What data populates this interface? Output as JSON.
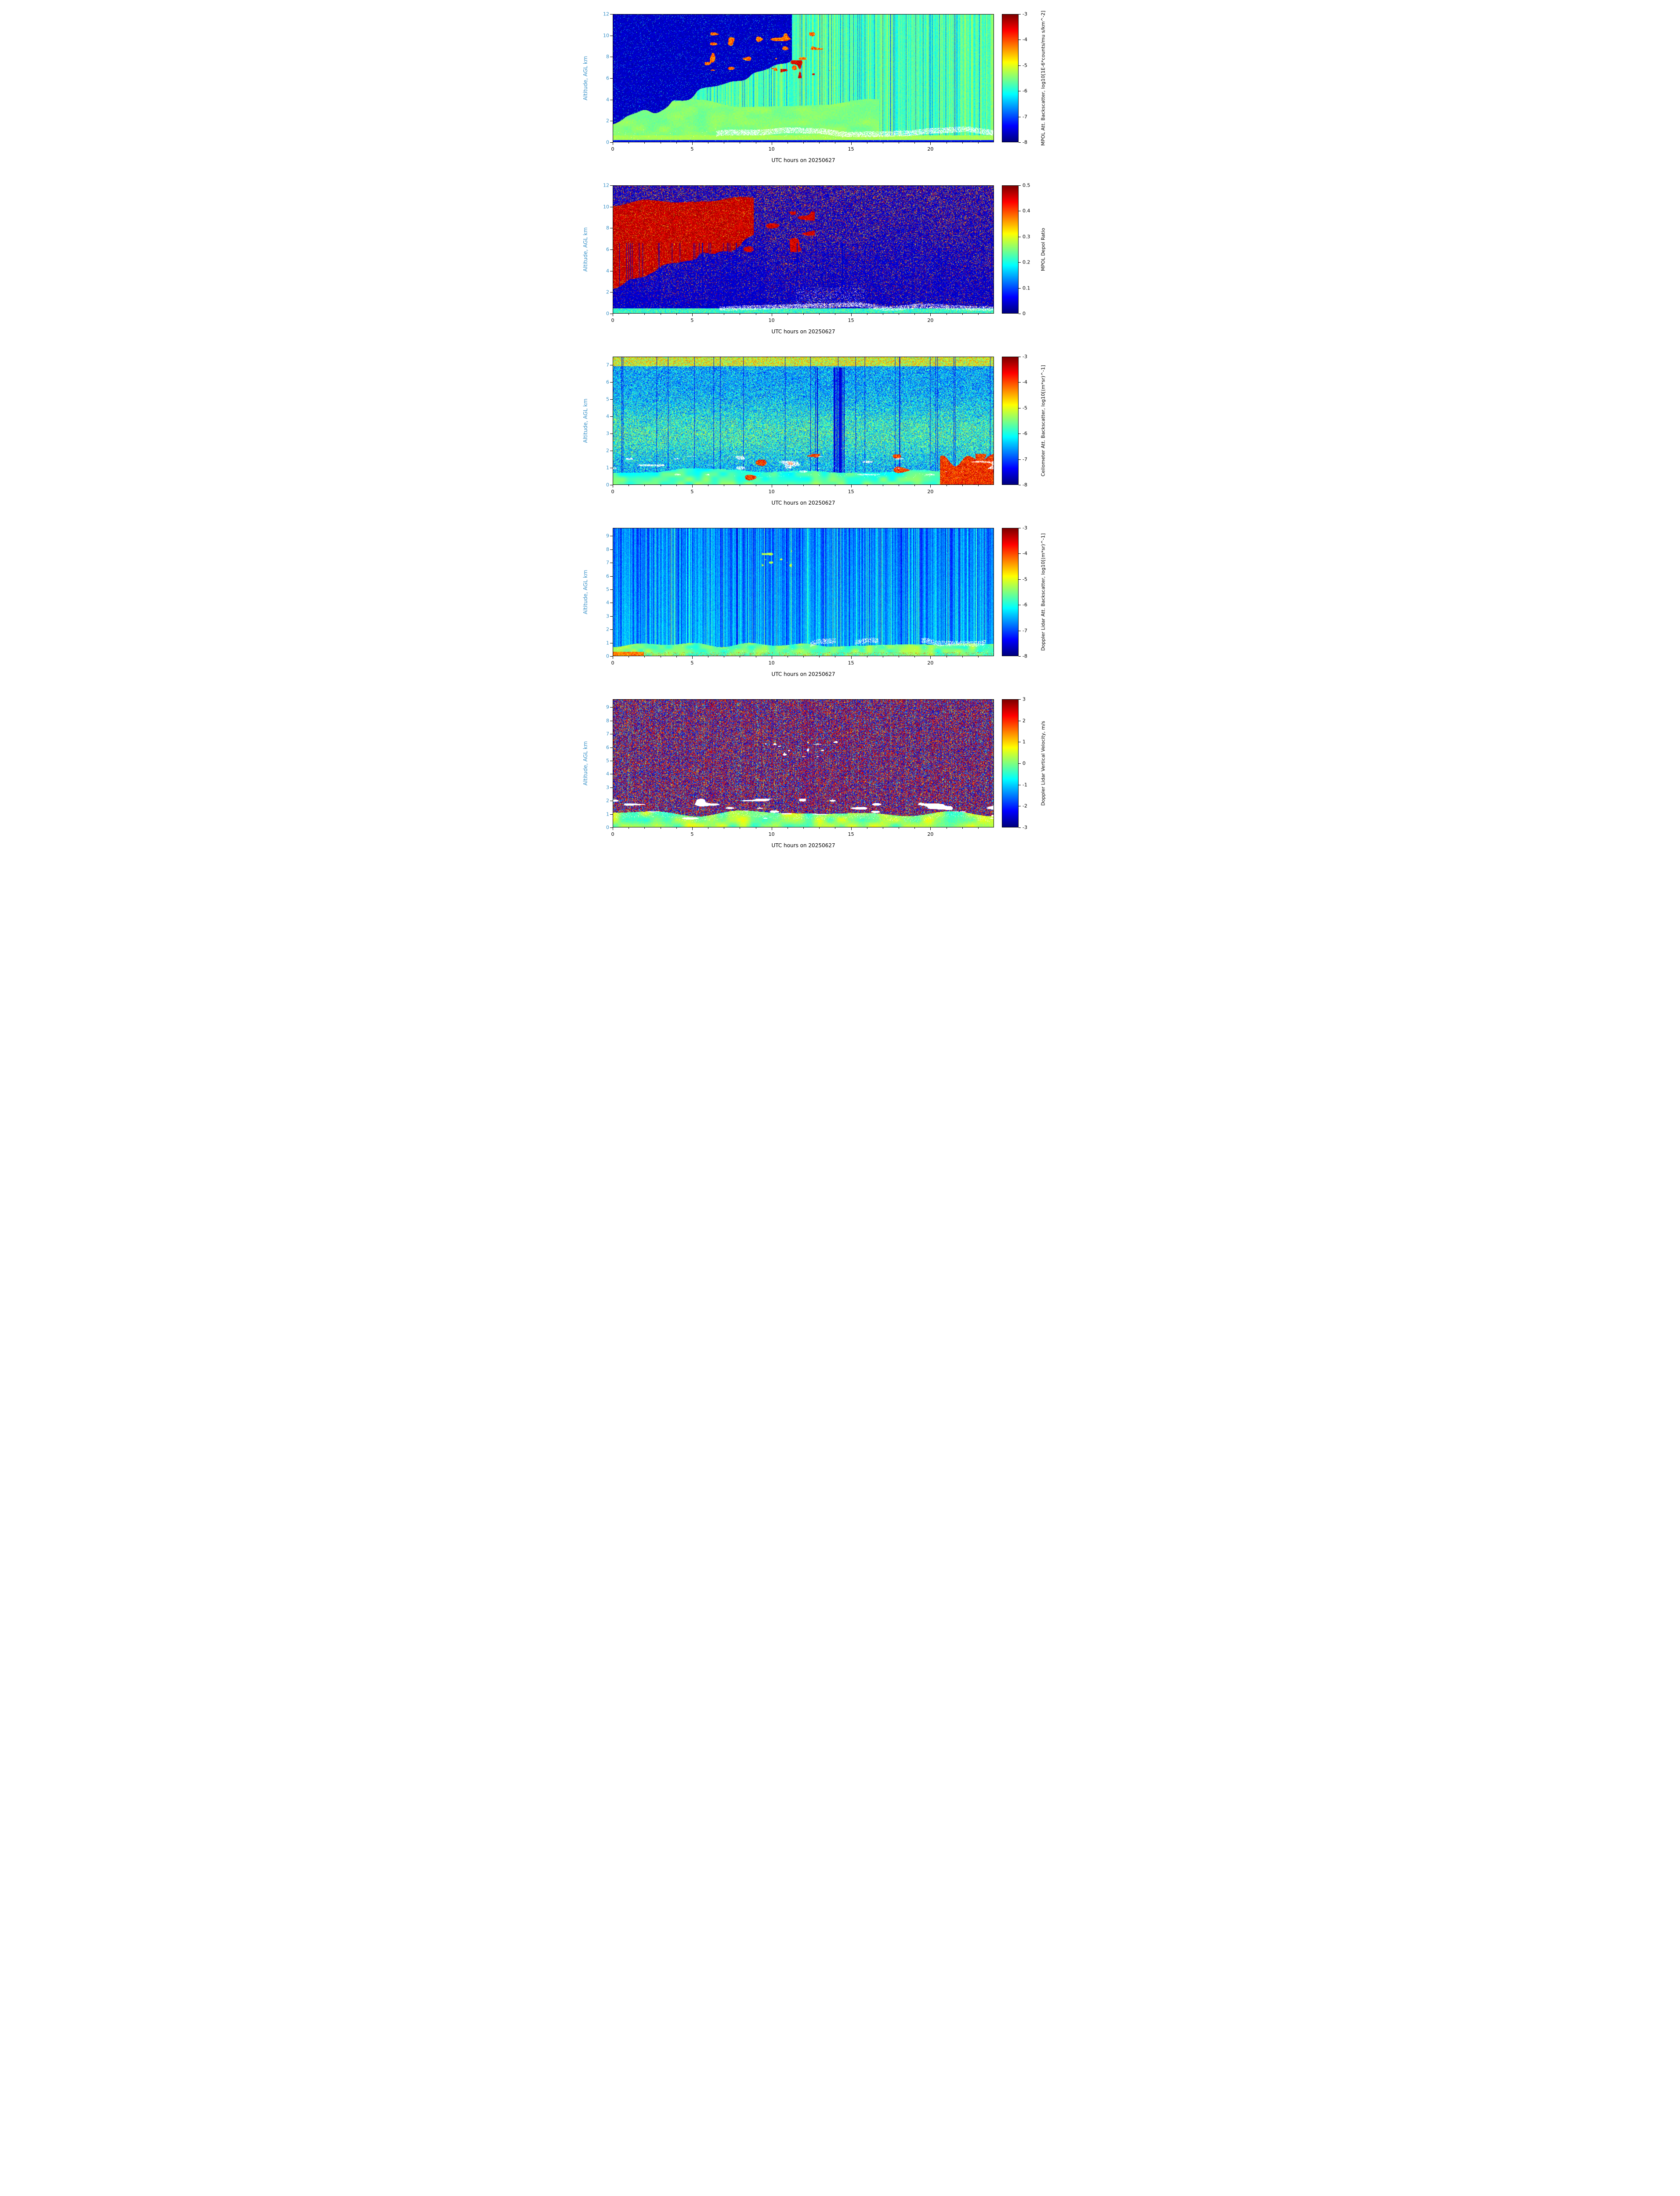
{
  "figure": {
    "date": "20250627",
    "xlabel": "UTC hours on 20250627",
    "ylabel": "Altitude, AGL km",
    "axis_color": "#3a92c8",
    "x_range": [
      0,
      24
    ],
    "x_major_ticks": [
      0,
      5,
      10,
      15,
      20
    ],
    "panels": [
      {
        "name": "mpol-att-backscatter",
        "y_range": [
          0,
          12
        ],
        "y_ticks": [
          0,
          2,
          4,
          6,
          8,
          10,
          12
        ],
        "colorbar": {
          "label": "MPOL Att. Backscatter, log10[1E-6*counts/mu s/km^-2]",
          "range": [
            -8,
            -3
          ],
          "ticks": [
            -3,
            -4,
            -5,
            -6,
            -7,
            -8
          ],
          "colormap": "jet"
        }
      },
      {
        "name": "mpol-depol-ratio",
        "y_range": [
          0,
          12
        ],
        "y_ticks": [
          0,
          2,
          4,
          6,
          8,
          10,
          12
        ],
        "colorbar": {
          "label": "MPOL Depol Ratio",
          "range": [
            0,
            0.5
          ],
          "ticks": [
            0,
            0.1,
            0.2,
            0.3,
            0.4,
            0.5
          ],
          "colormap": "jet"
        }
      },
      {
        "name": "ceilometer-att-backscatter",
        "y_range": [
          0,
          7.5
        ],
        "y_ticks": [
          0,
          1,
          2,
          3,
          4,
          5,
          6,
          7
        ],
        "colorbar": {
          "label": "Ceilometer Att. Backscatter, log10[(m*sr)^-1]",
          "range": [
            -8,
            -3
          ],
          "ticks": [
            -3,
            -4,
            -5,
            -6,
            -7,
            -8
          ],
          "colormap": "jet"
        }
      },
      {
        "name": "doppler-lidar-att-backscatter",
        "y_range": [
          0,
          9.6
        ],
        "y_ticks": [
          0,
          1,
          2,
          3,
          4,
          5,
          6,
          7,
          8,
          9
        ],
        "colorbar": {
          "label": "Doppler Lidar Att. Backscatter, log10[(m*sr)^-1]",
          "range": [
            -8,
            -3
          ],
          "ticks": [
            -3,
            -4,
            -5,
            -6,
            -7,
            -8
          ],
          "colormap": "jet"
        }
      },
      {
        "name": "doppler-lidar-vertical-velocity",
        "y_range": [
          0,
          9.6
        ],
        "y_ticks": [
          0,
          1,
          2,
          3,
          4,
          5,
          6,
          7,
          8,
          9
        ],
        "colorbar": {
          "label": "Doppler Lidar Vertical Velocity, m/s",
          "range": [
            -3,
            3
          ],
          "ticks": [
            3,
            2,
            1,
            0,
            -1,
            -2,
            -3
          ],
          "colormap": "jet"
        }
      }
    ]
  },
  "chart_data": [
    {
      "type": "heatmap",
      "title": "MPOL attenuated backscatter time-height curtain",
      "xlabel": "UTC hours on 20250627",
      "ylabel": "Altitude, AGL km",
      "x_range": [
        0,
        24
      ],
      "x_ticks": [
        0,
        5,
        10,
        15,
        20
      ],
      "y_range_km": [
        0,
        12
      ],
      "y_ticks": [
        0,
        2,
        4,
        6,
        8,
        10,
        12
      ],
      "value_label": "MPOL Att. Backscatter, log10[1E-6*counts/mu s/km^-2]",
      "value_range": [
        -8,
        -3
      ],
      "colormap": "jet",
      "legend_position": "right-colorbar",
      "grid": false,
      "features": [
        "Dark-blue low-signal noise region above ~2 km at hour 0 rising to ~10 km by hour 6",
        "Green boundary-layer aerosol (about -6 to -5.5) below ~3-4 km during hours 0-8",
        "White cloud returns near 0.5-1 km AGL intermittently from hour ~7 through 24",
        "Orange-red elevated cloud layers near 7-10 km between hours ~6 and 13",
        "Strong vertical striping: alternating bright cyan columns and dark attenuated/gap columns after hour 9"
      ]
    },
    {
      "type": "heatmap",
      "title": "MPOL depolarization ratio time-height curtain",
      "xlabel": "UTC hours on 20250627",
      "ylabel": "Altitude, AGL km",
      "x_range": [
        0,
        24
      ],
      "x_ticks": [
        0,
        5,
        10,
        15,
        20
      ],
      "y_range_km": [
        0,
        12
      ],
      "y_ticks": [
        0,
        2,
        4,
        6,
        8,
        10,
        12
      ],
      "value_label": "MPOL Depol Ratio",
      "value_range": [
        0,
        0.5
      ],
      "colormap": "jet",
      "legend_position": "right-colorbar",
      "grid": false,
      "features": [
        "Large dark-red high-depolarization (>0.4) region from ~3 km up to ~10 km during hours 0-6",
        "Red streaky fall-streak features near 6-9 km during hours 8-13",
        "Speckled red noise over dark-blue background, density increasing with altitude and after hour 10",
        "White cloud returns near 0.5-1.5 km after hour ~7",
        "Narrow dark-blue attenuation gap columns in hours 9-16"
      ]
    },
    {
      "type": "heatmap",
      "title": "Ceilometer attenuated backscatter time-height curtain",
      "xlabel": "UTC hours on 20250627",
      "ylabel": "Altitude, AGL km",
      "x_range": [
        0,
        24
      ],
      "x_ticks": [
        0,
        5,
        10,
        15,
        20
      ],
      "y_range_km": [
        0,
        7.5
      ],
      "y_ticks": [
        0,
        1,
        2,
        3,
        4,
        5,
        6,
        7
      ],
      "value_label": "Ceilometer Att. Backscatter, log10[(m*sr)^-1]",
      "value_range": [
        -8,
        -3
      ],
      "colormap": "jet",
      "legend_position": "right-colorbar",
      "grid": false,
      "features": [
        "Speckled blue noise background with an enhanced green-cyan band near 2.5-4.5 km",
        "Yellow-green speckle along the top edge near 7.5 km",
        "Smooth cyan-green aerosol layer below ~1 km all day",
        "White cloud bases between ~0.5 and 2 km, most frequent hours 9-19",
        "Dark navy vertical attenuation shafts around hours 13-16",
        "Orange-red strong low-level returns near hours 12-15 and 22-24"
      ]
    },
    {
      "type": "heatmap",
      "title": "Doppler lidar attenuated backscatter time-height curtain",
      "xlabel": "UTC hours on 20250627",
      "ylabel": "Altitude, AGL km",
      "x_range": [
        0,
        24
      ],
      "x_ticks": [
        0,
        5,
        10,
        15,
        20
      ],
      "y_range_km": [
        0,
        9.6
      ],
      "y_ticks": [
        0,
        1,
        2,
        3,
        4,
        5,
        6,
        7,
        8,
        9
      ],
      "value_label": "Doppler Lidar Att. Backscatter, log10[(m*sr)^-1]",
      "value_range": [
        -8,
        -3
      ],
      "colormap": "jet",
      "legend_position": "right-colorbar",
      "grid": false,
      "features": [
        "Finely striped blue noise background (thin vertical columns) across all 24 hours",
        "Cyan-green boundary layer below ~1 km with embedded white cloud returns",
        "Green elevated feature near 7-8 km around hour 10",
        "Clusters of white clouds between ~1 and 2 km during hours 10-24",
        "Slightly darker blue toward plot top"
      ]
    },
    {
      "type": "heatmap",
      "title": "Doppler lidar vertical velocity time-height curtain",
      "xlabel": "UTC hours on 20250627",
      "ylabel": "Altitude, AGL km",
      "x_range": [
        0,
        24
      ],
      "x_ticks": [
        0,
        5,
        10,
        15,
        20
      ],
      "y_range_km": [
        0,
        9.6
      ],
      "y_ticks": [
        0,
        1,
        2,
        3,
        4,
        5,
        6,
        7,
        8,
        9
      ],
      "value_label": "Doppler Lidar Vertical Velocity, m/s",
      "value_range": [
        -3,
        3
      ],
      "colormap": "jet",
      "legend_position": "right-colorbar",
      "grid": false,
      "features": [
        "Random dark-red/dark-blue velocity speckle (noise, +/-3 m/s) above the boundary layer at all hours",
        "Coherent velocity field below ~1 km: cyan-green-yellow values near -1 to +1 m/s",
        "White cloud blobs near 1-2 km during hours 9-24",
        "Small white cloud returns near 7-8 km around hours 10-14"
      ]
    }
  ]
}
